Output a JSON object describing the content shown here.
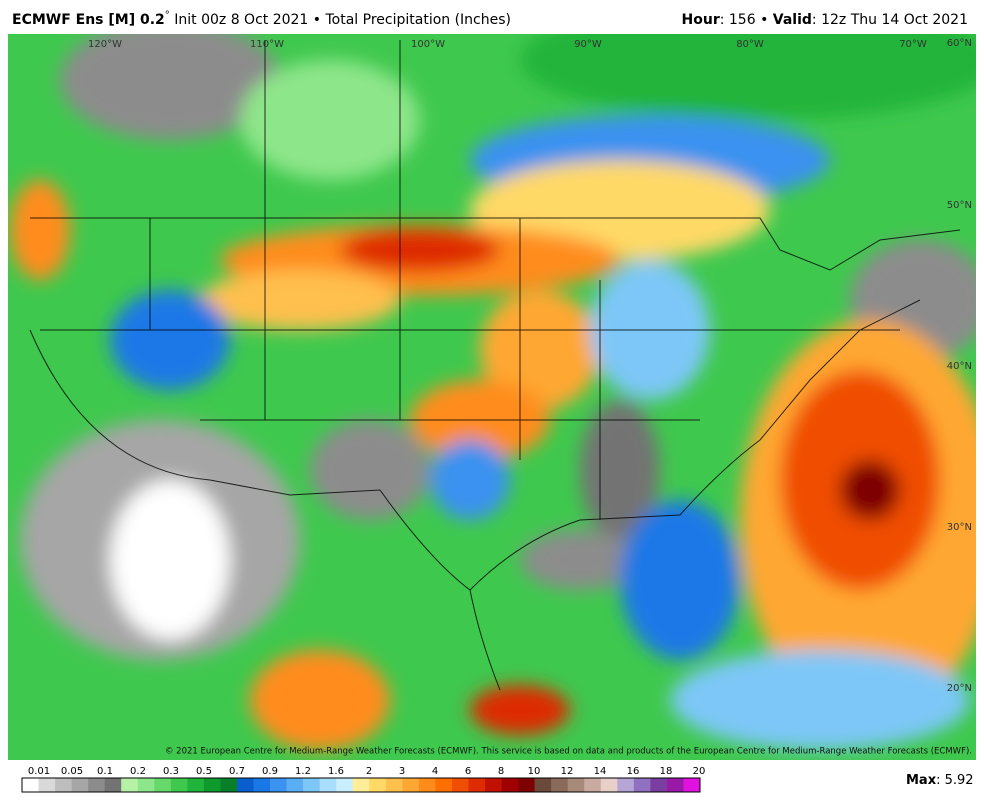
{
  "header": {
    "model": "ECMWF Ens [M] 0.2",
    "degree": "°",
    "init": " Init 00z 8 Oct 2021 • Total Precipitation (Inches)",
    "hour_label": "Hour",
    "hour_value": ": 156 • ",
    "valid_label": "Valid",
    "valid_value": ": 12z Thu 14 Oct 2021"
  },
  "map": {
    "lon_labels": [
      "120°W",
      "110°W",
      "100°W",
      "90°W",
      "80°W",
      "70°W"
    ],
    "lat_labels": [
      "60°N",
      "50°N",
      "40°N",
      "30°N",
      "20°N"
    ],
    "copyright": "© 2021 European Centre for Medium-Range Weather Forecasts (ECMWF). This service is based on data and products of the European Centre for Medium-Range Weather Forecasts (ECMWF)."
  },
  "colorbar": {
    "labels": [
      "0.01",
      "0.05",
      "0.1",
      "0.2",
      "0.3",
      "0.5",
      "0.7",
      "0.9",
      "1.2",
      "1.6",
      "2",
      "3",
      "4",
      "6",
      "8",
      "10",
      "12",
      "14",
      "16",
      "18",
      "20"
    ],
    "colors": [
      "#ffffff",
      "#d9d9d9",
      "#bdbdbd",
      "#a6a6a6",
      "#8c8c8c",
      "#737373",
      "#b6f2a6",
      "#8ee68a",
      "#66d96b",
      "#3fc84e",
      "#20b43a",
      "#0f9a2e",
      "#08802a",
      "#0a5fcf",
      "#1a78e6",
      "#3b92f0",
      "#5aaef5",
      "#7dc7f8",
      "#a8ddfb",
      "#c9eefd",
      "#ffee99",
      "#ffd966",
      "#ffc04d",
      "#ffa733",
      "#ff8c1a",
      "#ff6f00",
      "#f04e00",
      "#de2c00",
      "#c21000",
      "#a00000",
      "#7e0000",
      "#6b4a3a",
      "#8a6a5a",
      "#a88a7a",
      "#c8aaa0",
      "#e8d0c8",
      "#b6a6d6",
      "#9070c0",
      "#7a3ea0",
      "#9a1aa8",
      "#e012e0"
    ]
  },
  "max": {
    "label": "Max",
    "value": ": 5.92"
  }
}
